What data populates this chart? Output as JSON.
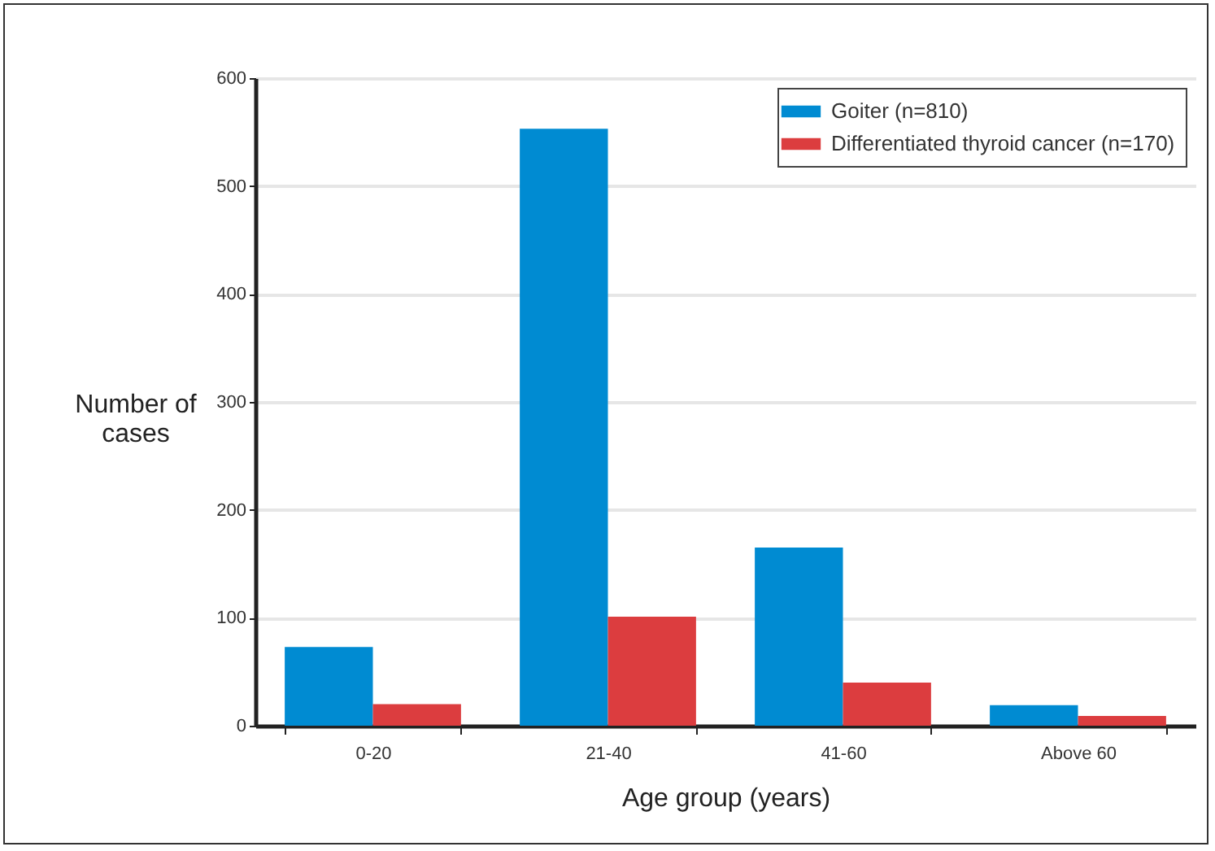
{
  "chart_data": {
    "type": "bar",
    "xlabel": "Age group (years)",
    "ylabel": "Number of cases",
    "categories": [
      "0-20",
      "21-40",
      "41-60",
      "Above 60"
    ],
    "series": [
      {
        "name": "Goiter (n=810)",
        "color": "#008bd2",
        "values": [
          73,
          553,
          165,
          19
        ]
      },
      {
        "name": "Differentiated thyroid cancer (n=170)",
        "color": "#dc3d3f",
        "values": [
          20,
          101,
          40,
          9
        ]
      }
    ],
    "ylim": [
      0,
      600
    ],
    "yticks": [
      0,
      100,
      200,
      300,
      400,
      500,
      600
    ],
    "grid": "y",
    "legend": "top right"
  }
}
